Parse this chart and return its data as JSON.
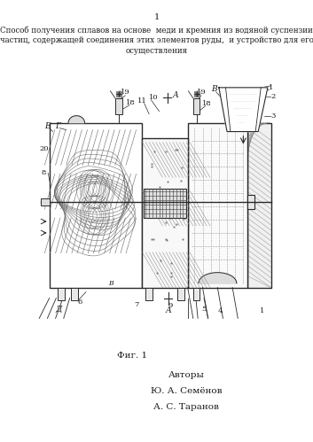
{
  "page_number": "1",
  "title_line1": "Способ получения сплавов на основе  меди и кремния из водяной суспензии",
  "title_line2": "частиц, содержащей соединения этих элементов руды,  и устройство для его",
  "title_line3": "осуществления",
  "fig_label": "Фиг. 1",
  "authors_label": "Авторы",
  "author1": "Ю. А. Семёнов",
  "author2": "А. С. Таранов",
  "bg_color": "#ffffff",
  "text_color": "#1a1a1a",
  "drawing_color": "#2a2a2a",
  "fig_width": 3.53,
  "fig_height": 4.99,
  "dpi": 100
}
